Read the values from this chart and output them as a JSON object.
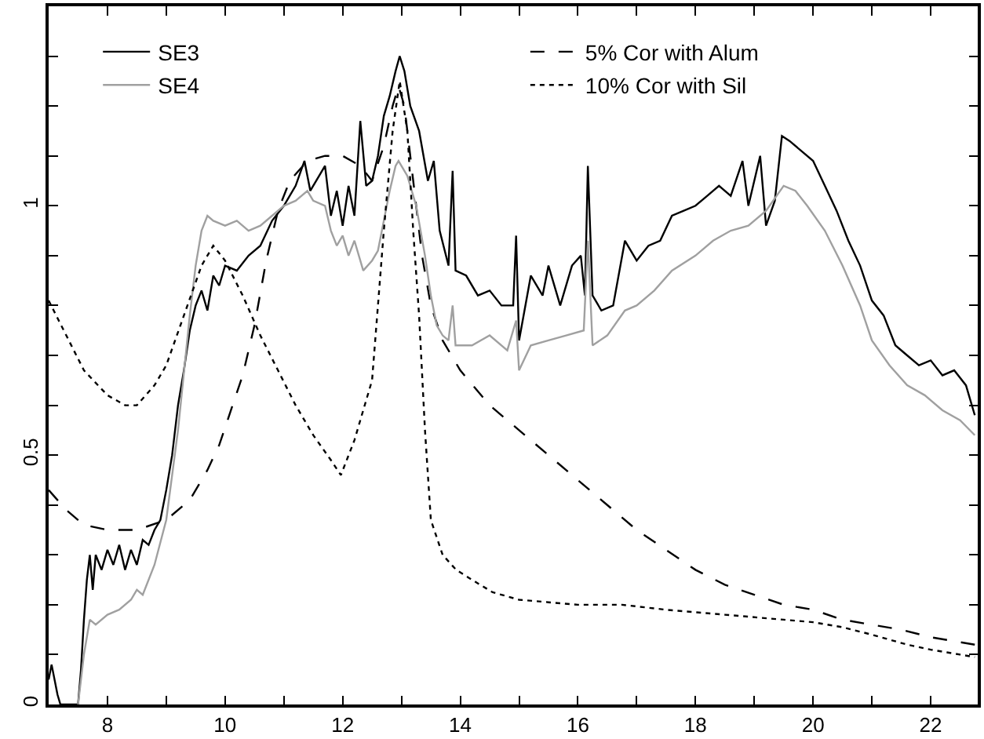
{
  "chart_data": {
    "type": "line",
    "xlim": [
      7,
      22.8
    ],
    "ylim": [
      0,
      1.4
    ],
    "xticks": [
      8,
      {
        "value": 9,
        "label": null
      },
      10,
      {
        "value": 11,
        "label": null
      },
      12,
      {
        "value": 13,
        "label": null
      },
      14,
      {
        "value": 15,
        "label": null
      },
      16,
      {
        "value": 17,
        "label": null
      },
      18,
      {
        "value": 19,
        "label": null
      },
      20,
      {
        "value": 21,
        "label": null
      },
      22
    ],
    "yticks": [
      0,
      {
        "value": 0.1,
        "label": null
      },
      {
        "value": 0.2,
        "label": null
      },
      {
        "value": 0.3,
        "label": null
      },
      {
        "value": 0.4,
        "label": null
      },
      0.5,
      {
        "value": 0.6,
        "label": null
      },
      {
        "value": 0.7,
        "label": null
      },
      {
        "value": 0.8,
        "label": null
      },
      {
        "value": 0.9,
        "label": null
      },
      1,
      {
        "value": 1.1,
        "label": null
      },
      {
        "value": 1.2,
        "label": null
      },
      {
        "value": 1.3,
        "label": null
      }
    ],
    "legend": "top",
    "marker": "none",
    "series": [
      {
        "name": "SE3",
        "color": "#000000",
        "line_style": "solid",
        "x": [
          7.0,
          7.05,
          7.15,
          7.2,
          7.5,
          7.55,
          7.6,
          7.65,
          7.7,
          7.75,
          7.8,
          7.9,
          8.0,
          8.1,
          8.2,
          8.3,
          8.4,
          8.5,
          8.6,
          8.7,
          8.8,
          8.9,
          9.0,
          9.1,
          9.2,
          9.3,
          9.4,
          9.5,
          9.6,
          9.7,
          9.8,
          9.9,
          10.0,
          10.2,
          10.4,
          10.6,
          10.8,
          11.0,
          11.2,
          11.35,
          11.45,
          11.6,
          11.7,
          11.8,
          11.9,
          12.0,
          12.1,
          12.2,
          12.3,
          12.4,
          12.5,
          12.6,
          12.7,
          12.8,
          12.9,
          12.97,
          13.05,
          13.15,
          13.3,
          13.45,
          13.55,
          13.65,
          13.8,
          13.87,
          13.92,
          14.1,
          14.3,
          14.5,
          14.7,
          14.9,
          14.95,
          15.0,
          15.2,
          15.4,
          15.5,
          15.7,
          15.9,
          16.05,
          16.12,
          16.17,
          16.25,
          16.4,
          16.6,
          16.8,
          17.0,
          17.2,
          17.4,
          17.6,
          17.8,
          18.0,
          18.2,
          18.4,
          18.6,
          18.8,
          18.9,
          19.1,
          19.2,
          19.35,
          19.47,
          19.6,
          19.8,
          20.0,
          20.2,
          20.4,
          20.6,
          20.8,
          21.0,
          21.2,
          21.4,
          21.6,
          21.8,
          22.0,
          22.2,
          22.4,
          22.6,
          22.75
        ],
        "values": [
          0.05,
          0.08,
          0.02,
          0.0,
          0.0,
          0.07,
          0.17,
          0.25,
          0.3,
          0.23,
          0.3,
          0.27,
          0.31,
          0.28,
          0.32,
          0.27,
          0.31,
          0.28,
          0.33,
          0.32,
          0.35,
          0.37,
          0.43,
          0.5,
          0.6,
          0.67,
          0.75,
          0.8,
          0.83,
          0.79,
          0.86,
          0.84,
          0.88,
          0.87,
          0.9,
          0.92,
          0.97,
          1.0,
          1.04,
          1.09,
          1.03,
          1.06,
          1.08,
          0.98,
          1.03,
          0.96,
          1.04,
          0.98,
          1.17,
          1.04,
          1.05,
          1.1,
          1.18,
          1.22,
          1.27,
          1.3,
          1.27,
          1.2,
          1.15,
          1.05,
          1.09,
          0.95,
          0.88,
          1.07,
          0.87,
          0.86,
          0.82,
          0.83,
          0.8,
          0.8,
          0.94,
          0.73,
          0.86,
          0.82,
          0.88,
          0.8,
          0.88,
          0.9,
          0.82,
          1.08,
          0.82,
          0.79,
          0.8,
          0.93,
          0.89,
          0.92,
          0.93,
          0.98,
          0.99,
          1.0,
          1.02,
          1.04,
          1.02,
          1.09,
          1.0,
          1.1,
          0.96,
          1.01,
          1.14,
          1.13,
          1.11,
          1.09,
          1.04,
          0.99,
          0.93,
          0.88,
          0.81,
          0.78,
          0.72,
          0.7,
          0.68,
          0.69,
          0.66,
          0.67,
          0.64,
          0.58
        ]
      },
      {
        "name": "5% Cor with Alum",
        "color": "#000000",
        "line_style": "dashed",
        "x": [
          7.0,
          7.3,
          7.6,
          8.0,
          8.5,
          9.0,
          9.4,
          9.7,
          9.9,
          10.1,
          10.3,
          10.5,
          10.7,
          10.9,
          11.1,
          11.4,
          11.7,
          12.0,
          12.3,
          12.5,
          12.7,
          12.85,
          12.95,
          13.05,
          13.2,
          13.35,
          13.5,
          13.7,
          14.0,
          14.5,
          15.0,
          15.5,
          16.0,
          16.5,
          17.0,
          17.5,
          18.0,
          18.5,
          19.0,
          19.5,
          20.0,
          20.5,
          21.0,
          21.5,
          22.0,
          22.5,
          22.75
        ],
        "values": [
          0.43,
          0.39,
          0.36,
          0.35,
          0.35,
          0.37,
          0.41,
          0.47,
          0.52,
          0.59,
          0.66,
          0.76,
          0.89,
          0.99,
          1.05,
          1.09,
          1.1,
          1.1,
          1.08,
          1.05,
          1.12,
          1.2,
          1.24,
          1.2,
          1.05,
          0.9,
          0.8,
          0.73,
          0.67,
          0.6,
          0.55,
          0.5,
          0.45,
          0.4,
          0.35,
          0.31,
          0.27,
          0.24,
          0.22,
          0.2,
          0.19,
          0.17,
          0.16,
          0.15,
          0.135,
          0.125,
          0.12
        ]
      },
      {
        "name": "SE4",
        "color": "#a0a0a0",
        "line_style": "solid",
        "x": [
          7.5,
          7.55,
          7.6,
          7.7,
          7.8,
          8.0,
          8.2,
          8.4,
          8.5,
          8.6,
          8.8,
          9.0,
          9.2,
          9.4,
          9.5,
          9.6,
          9.7,
          9.8,
          10.0,
          10.2,
          10.4,
          10.6,
          10.8,
          11.0,
          11.2,
          11.4,
          11.5,
          11.7,
          11.8,
          11.9,
          12.0,
          12.1,
          12.2,
          12.35,
          12.5,
          12.6,
          12.7,
          12.8,
          12.9,
          12.95,
          13.1,
          13.25,
          13.4,
          13.5,
          13.6,
          13.7,
          13.8,
          13.87,
          13.92,
          14.2,
          14.5,
          14.8,
          14.95,
          15.0,
          15.2,
          15.5,
          15.8,
          16.1,
          16.17,
          16.25,
          16.5,
          16.8,
          17.0,
          17.3,
          17.6,
          18.0,
          18.3,
          18.6,
          18.9,
          19.2,
          19.5,
          19.7,
          19.9,
          20.2,
          20.5,
          20.8,
          21.0,
          21.3,
          21.6,
          21.9,
          22.2,
          22.5,
          22.75
        ],
        "values": [
          0.0,
          0.05,
          0.1,
          0.17,
          0.16,
          0.18,
          0.19,
          0.21,
          0.23,
          0.22,
          0.28,
          0.37,
          0.55,
          0.78,
          0.88,
          0.95,
          0.98,
          0.97,
          0.96,
          0.97,
          0.95,
          0.96,
          0.98,
          1.0,
          1.01,
          1.03,
          1.01,
          1.0,
          0.95,
          0.92,
          0.94,
          0.9,
          0.93,
          0.87,
          0.89,
          0.91,
          0.97,
          1.03,
          1.08,
          1.09,
          1.06,
          1.0,
          0.9,
          0.82,
          0.76,
          0.74,
          0.73,
          0.8,
          0.72,
          0.72,
          0.74,
          0.71,
          0.77,
          0.67,
          0.72,
          0.73,
          0.74,
          0.75,
          0.93,
          0.72,
          0.74,
          0.79,
          0.8,
          0.83,
          0.87,
          0.9,
          0.93,
          0.95,
          0.96,
          0.99,
          1.04,
          1.03,
          1.0,
          0.95,
          0.88,
          0.8,
          0.73,
          0.68,
          0.64,
          0.62,
          0.59,
          0.57,
          0.54
        ]
      },
      {
        "name": "10% Cor with Sil",
        "color": "#000000",
        "line_style": "dotted",
        "x": [
          7.0,
          7.3,
          7.6,
          8.0,
          8.3,
          8.5,
          8.8,
          9.0,
          9.3,
          9.6,
          9.8,
          10.0,
          10.3,
          10.6,
          10.9,
          11.2,
          11.5,
          11.8,
          11.97,
          12.2,
          12.5,
          12.7,
          12.85,
          12.97,
          13.1,
          13.2,
          13.3,
          13.4,
          13.5,
          13.7,
          13.93,
          14.2,
          14.55,
          15.0,
          15.5,
          16.0,
          16.75,
          17.5,
          18.5,
          19.5,
          20.0,
          20.5,
          21.0,
          21.6,
          22.0,
          22.5,
          22.75
        ],
        "values": [
          0.81,
          0.74,
          0.67,
          0.62,
          0.6,
          0.6,
          0.64,
          0.68,
          0.78,
          0.88,
          0.92,
          0.89,
          0.82,
          0.74,
          0.67,
          0.6,
          0.54,
          0.49,
          0.46,
          0.53,
          0.65,
          0.95,
          1.15,
          1.25,
          1.15,
          0.95,
          0.78,
          0.55,
          0.37,
          0.3,
          0.27,
          0.25,
          0.225,
          0.21,
          0.205,
          0.2,
          0.2,
          0.19,
          0.18,
          0.17,
          0.165,
          0.155,
          0.14,
          0.12,
          0.11,
          0.1,
          0.095
        ]
      }
    ]
  }
}
